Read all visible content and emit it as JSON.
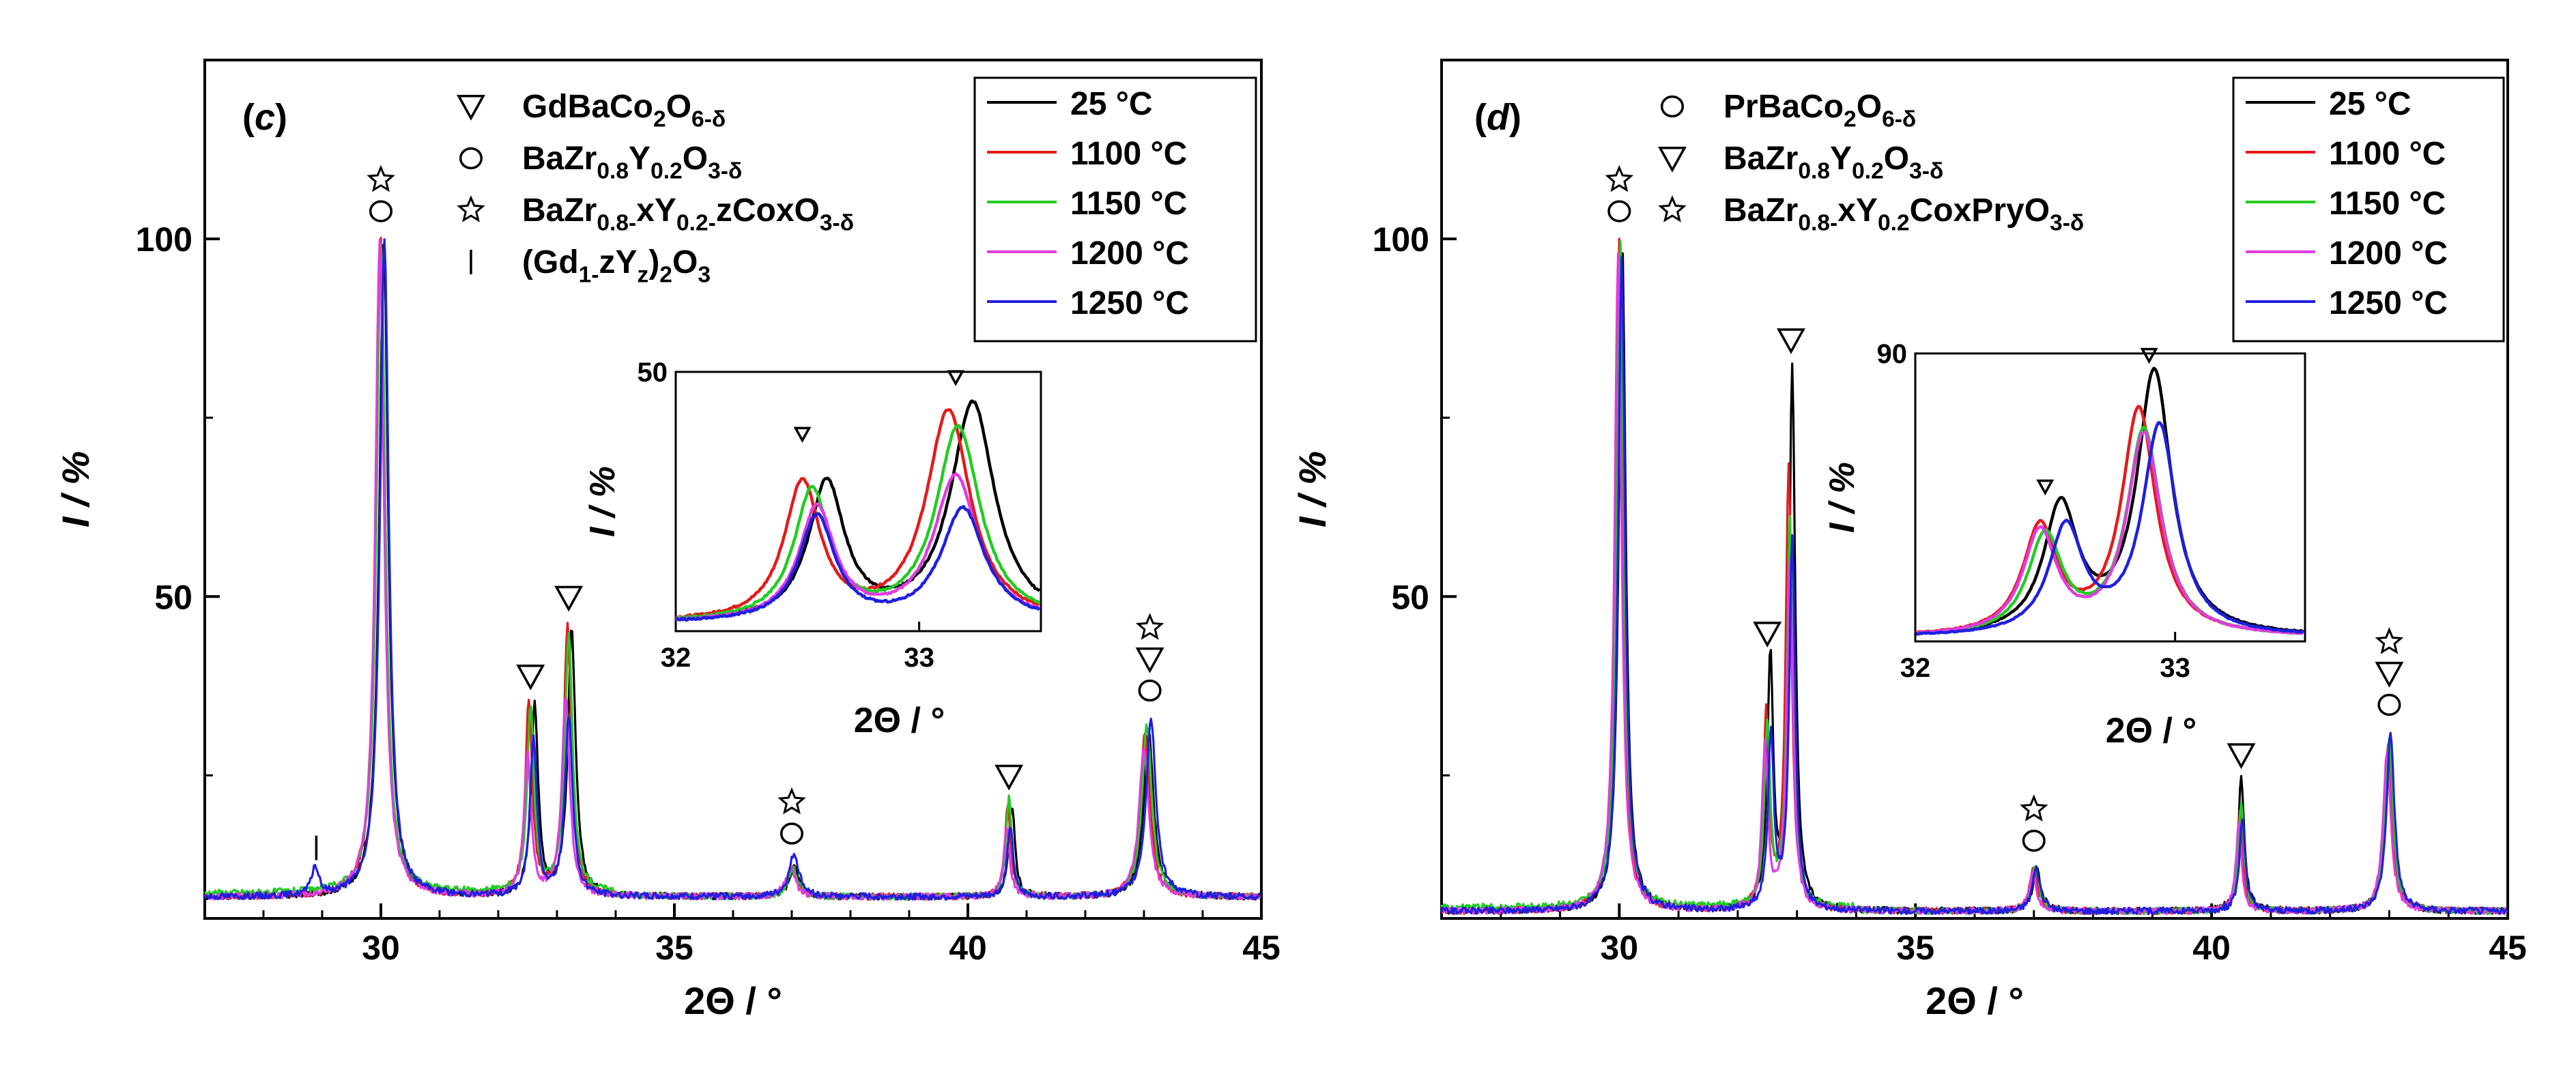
{
  "chart_data": [
    {
      "type": "line",
      "panel_label": "c",
      "xlabel": "2Θ / °",
      "ylabel": "I / %",
      "xlim": [
        27,
        45
      ],
      "ylim": [
        5,
        125
      ],
      "x_ticks": [
        "30",
        "35",
        "40",
        "45"
      ],
      "y_ticks": [
        "50",
        "100"
      ],
      "legend": {
        "placement": "top-right",
        "entries": [
          "25 °C",
          "1100 °C",
          "1150 °C",
          "1200 °C",
          "1250 °C"
        ]
      },
      "phases": [
        {
          "symbol": "triangle",
          "text": "GdBaCo2O6-δ"
        },
        {
          "symbol": "circle",
          "text": "BaZr0.8Y0.2O3-δ"
        },
        {
          "symbol": "star",
          "text": "BaZr0.8-xY0.2-zCoxO3-δ"
        },
        {
          "symbol": "bar",
          "text": "(Gd1-zYz)2O3"
        }
      ],
      "peak_markers": [
        {
          "x": 30.0,
          "y": 101,
          "symbols": [
            "circle",
            "star"
          ]
        },
        {
          "x": 32.55,
          "y": 36,
          "symbols": [
            "triangle"
          ]
        },
        {
          "x": 33.2,
          "y": 47,
          "symbols": [
            "triangle"
          ]
        },
        {
          "x": 37.0,
          "y": 14,
          "symbols": [
            "circle",
            "star"
          ]
        },
        {
          "x": 40.7,
          "y": 22,
          "symbols": [
            "triangle"
          ]
        },
        {
          "x": 43.1,
          "y": 34,
          "symbols": [
            "circle",
            "triangle",
            "star"
          ]
        },
        {
          "x": 28.9,
          "y": 12,
          "symbols": [
            "bar"
          ]
        }
      ],
      "series": [
        {
          "name": "25 °C",
          "color": "#000000",
          "peaks": [
            {
              "x": 30.05,
              "h": 100,
              "w": 0.09
            },
            {
              "x": 32.62,
              "h": 35,
              "w": 0.07
            },
            {
              "x": 33.25,
              "h": 45,
              "w": 0.08
            },
            {
              "x": 37.05,
              "h": 12,
              "w": 0.1
            },
            {
              "x": 40.75,
              "h": 21,
              "w": 0.06
            },
            {
              "x": 43.08,
              "h": 31,
              "w": 0.1
            }
          ]
        },
        {
          "name": "1100 °C",
          "color": "#e41a1c",
          "peaks": [
            {
              "x": 30.0,
              "h": 100,
              "w": 0.09
            },
            {
              "x": 32.52,
              "h": 35,
              "w": 0.07
            },
            {
              "x": 33.18,
              "h": 46,
              "w": 0.08
            },
            {
              "x": 37.0,
              "h": 12,
              "w": 0.1
            },
            {
              "x": 40.68,
              "h": 21,
              "w": 0.06
            },
            {
              "x": 43.02,
              "h": 31,
              "w": 0.1
            }
          ]
        },
        {
          "name": "1150 °C",
          "color": "#22cc22",
          "peaks": [
            {
              "x": 30.0,
              "h": 99,
              "w": 0.09
            },
            {
              "x": 32.55,
              "h": 34,
              "w": 0.07
            },
            {
              "x": 33.2,
              "h": 44,
              "w": 0.08
            },
            {
              "x": 37.02,
              "h": 12,
              "w": 0.1
            },
            {
              "x": 40.7,
              "h": 22,
              "w": 0.06
            },
            {
              "x": 43.05,
              "h": 32,
              "w": 0.1
            }
          ]
        },
        {
          "name": "1200 °C",
          "color": "#e03ce0",
          "peaks": [
            {
              "x": 29.98,
              "h": 100,
              "w": 0.09
            },
            {
              "x": 32.5,
              "h": 28,
              "w": 0.07
            },
            {
              "x": 33.15,
              "h": 36,
              "w": 0.08
            },
            {
              "x": 36.98,
              "h": 12,
              "w": 0.1
            },
            {
              "x": 40.66,
              "h": 18,
              "w": 0.06
            },
            {
              "x": 43.0,
              "h": 29,
              "w": 0.1
            }
          ]
        },
        {
          "name": "1250 °C",
          "color": "#1f1fe0",
          "peaks": [
            {
              "x": 30.06,
              "h": 100,
              "w": 0.09
            },
            {
              "x": 32.6,
              "h": 30,
              "w": 0.07
            },
            {
              "x": 33.2,
              "h": 33,
              "w": 0.08
            },
            {
              "x": 37.04,
              "h": 14,
              "w": 0.1
            },
            {
              "x": 40.72,
              "h": 18,
              "w": 0.06
            },
            {
              "x": 43.12,
              "h": 33,
              "w": 0.1
            },
            {
              "x": 28.88,
              "h": 12,
              "w": 0.07
            }
          ]
        }
      ],
      "inset": {
        "xlabel": "2Θ / °",
        "ylabel": "I / %",
        "xlim": [
          32,
          33.5
        ],
        "ylim": [
          18,
          50
        ],
        "x_ticks": [
          "32",
          "33"
        ],
        "y_ticks": [
          "50"
        ],
        "markers": [
          {
            "x": 32.52,
            "y": 41,
            "symbols": [
              "triangle"
            ]
          },
          {
            "x": 33.15,
            "y": 48,
            "symbols": [
              "triangle"
            ]
          }
        ],
        "series": [
          {
            "name": "25 °C",
            "color": "#000000",
            "peaks": [
              {
                "x": 32.62,
                "h": 36,
                "w": 0.09
              },
              {
                "x": 33.22,
                "h": 46,
                "w": 0.11
              }
            ]
          },
          {
            "name": "1100 °C",
            "color": "#e41a1c",
            "peaks": [
              {
                "x": 32.52,
                "h": 36,
                "w": 0.09
              },
              {
                "x": 33.12,
                "h": 45,
                "w": 0.11
              }
            ]
          },
          {
            "name": "1150 °C",
            "color": "#22cc22",
            "peaks": [
              {
                "x": 32.56,
                "h": 35,
                "w": 0.09
              },
              {
                "x": 33.16,
                "h": 43,
                "w": 0.11
              }
            ]
          },
          {
            "name": "1200 °C",
            "color": "#e03ce0",
            "peaks": [
              {
                "x": 32.58,
                "h": 33,
                "w": 0.09
              },
              {
                "x": 33.15,
                "h": 37,
                "w": 0.11
              }
            ]
          },
          {
            "name": "1250 °C",
            "color": "#1f1fe0",
            "peaks": [
              {
                "x": 32.58,
                "h": 32,
                "w": 0.09
              },
              {
                "x": 33.18,
                "h": 33,
                "w": 0.11
              }
            ]
          }
        ]
      }
    },
    {
      "type": "line",
      "panel_label": "d",
      "xlabel": "2Θ / °",
      "ylabel": "I / %",
      "xlim": [
        27,
        45
      ],
      "ylim": [
        5,
        125
      ],
      "x_ticks": [
        "30",
        "35",
        "40",
        "45"
      ],
      "y_ticks": [
        "50",
        "100"
      ],
      "legend": {
        "placement": "top-right",
        "entries": [
          "25 °C",
          "1100 °C",
          "1150 °C",
          "1200 °C",
          "1250 °C"
        ]
      },
      "phases": [
        {
          "symbol": "circle",
          "text": "PrBaCo2O6-δ"
        },
        {
          "symbol": "triangle",
          "text": "BaZr0.8Y0.2O3-δ"
        },
        {
          "symbol": "star",
          "text": "BaZr0.8-xY0.2CoxPryO3-δ"
        }
      ],
      "peak_markers": [
        {
          "x": 30.0,
          "y": 101,
          "symbols": [
            "circle",
            "star"
          ]
        },
        {
          "x": 32.5,
          "y": 42,
          "symbols": [
            "triangle"
          ]
        },
        {
          "x": 32.9,
          "y": 83,
          "symbols": [
            "triangle"
          ]
        },
        {
          "x": 37.0,
          "y": 13,
          "symbols": [
            "circle",
            "star"
          ]
        },
        {
          "x": 40.5,
          "y": 25,
          "symbols": [
            "triangle"
          ]
        },
        {
          "x": 43.0,
          "y": 32,
          "symbols": [
            "circle",
            "triangle",
            "star"
          ]
        }
      ],
      "series": [
        {
          "name": "25 °C",
          "color": "#000000",
          "peaks": [
            {
              "x": 30.05,
              "h": 100,
              "w": 0.07
            },
            {
              "x": 32.55,
              "h": 41,
              "w": 0.06
            },
            {
              "x": 32.92,
              "h": 82,
              "w": 0.06
            },
            {
              "x": 37.05,
              "h": 12,
              "w": 0.08
            },
            {
              "x": 40.5,
              "h": 25,
              "w": 0.06
            },
            {
              "x": 43.0,
              "h": 30,
              "w": 0.08
            }
          ]
        },
        {
          "name": "1100 °C",
          "color": "#e41a1c",
          "peaks": [
            {
              "x": 30.0,
              "h": 100,
              "w": 0.07
            },
            {
              "x": 32.48,
              "h": 33,
              "w": 0.06
            },
            {
              "x": 32.86,
              "h": 68,
              "w": 0.06
            },
            {
              "x": 37.0,
              "h": 12,
              "w": 0.08
            },
            {
              "x": 40.48,
              "h": 20,
              "w": 0.06
            },
            {
              "x": 42.98,
              "h": 29,
              "w": 0.08
            }
          ]
        },
        {
          "name": "1150 °C",
          "color": "#22cc22",
          "peaks": [
            {
              "x": 30.02,
              "h": 99,
              "w": 0.07
            },
            {
              "x": 32.5,
              "h": 31,
              "w": 0.06
            },
            {
              "x": 32.88,
              "h": 60,
              "w": 0.06
            },
            {
              "x": 37.02,
              "h": 12,
              "w": 0.08
            },
            {
              "x": 40.5,
              "h": 21,
              "w": 0.06
            },
            {
              "x": 43.0,
              "h": 30,
              "w": 0.08
            }
          ]
        },
        {
          "name": "1200 °C",
          "color": "#e03ce0",
          "peaks": [
            {
              "x": 29.98,
              "h": 98,
              "w": 0.07
            },
            {
              "x": 32.46,
              "h": 29,
              "w": 0.06
            },
            {
              "x": 32.88,
              "h": 55,
              "w": 0.06
            },
            {
              "x": 36.98,
              "h": 11,
              "w": 0.08
            },
            {
              "x": 40.46,
              "h": 18,
              "w": 0.06
            },
            {
              "x": 42.96,
              "h": 28,
              "w": 0.08
            }
          ]
        },
        {
          "name": "1250 °C",
          "color": "#1f1fe0",
          "peaks": [
            {
              "x": 30.04,
              "h": 97,
              "w": 0.07
            },
            {
              "x": 32.56,
              "h": 30,
              "w": 0.06
            },
            {
              "x": 32.92,
              "h": 58,
              "w": 0.06
            },
            {
              "x": 37.04,
              "h": 12,
              "w": 0.08
            },
            {
              "x": 40.52,
              "h": 19,
              "w": 0.06
            },
            {
              "x": 43.02,
              "h": 31,
              "w": 0.08
            }
          ]
        }
      ],
      "inset": {
        "xlabel": "2Θ / °",
        "ylabel": "I / %",
        "xlim": [
          32,
          33.5
        ],
        "ylim": [
          20,
          90
        ],
        "x_ticks": [
          "32",
          "33"
        ],
        "y_ticks": [
          "90"
        ],
        "markers": [
          {
            "x": 32.5,
            "y": 55,
            "symbols": [
              "triangle"
            ]
          },
          {
            "x": 32.9,
            "y": 87,
            "symbols": [
              "triangle"
            ]
          }
        ],
        "series": [
          {
            "name": "25 °C",
            "color": "#000000",
            "peaks": [
              {
                "x": 32.56,
                "h": 52,
                "w": 0.08
              },
              {
                "x": 32.92,
                "h": 85,
                "w": 0.08
              }
            ]
          },
          {
            "name": "1100 °C",
            "color": "#e41a1c",
            "peaks": [
              {
                "x": 32.48,
                "h": 47,
                "w": 0.08
              },
              {
                "x": 32.86,
                "h": 76,
                "w": 0.08
              }
            ]
          },
          {
            "name": "1150 °C",
            "color": "#22cc22",
            "peaks": [
              {
                "x": 32.5,
                "h": 45,
                "w": 0.08
              },
              {
                "x": 32.88,
                "h": 71,
                "w": 0.08
              }
            ]
          },
          {
            "name": "1200 °C",
            "color": "#e03ce0",
            "peaks": [
              {
                "x": 32.48,
                "h": 46,
                "w": 0.08
              },
              {
                "x": 32.88,
                "h": 70,
                "w": 0.08
              }
            ]
          },
          {
            "name": "1250 °C",
            "color": "#1f1fe0",
            "peaks": [
              {
                "x": 32.58,
                "h": 47,
                "w": 0.08
              },
              {
                "x": 32.94,
                "h": 72,
                "w": 0.08
              }
            ]
          }
        ]
      }
    }
  ]
}
